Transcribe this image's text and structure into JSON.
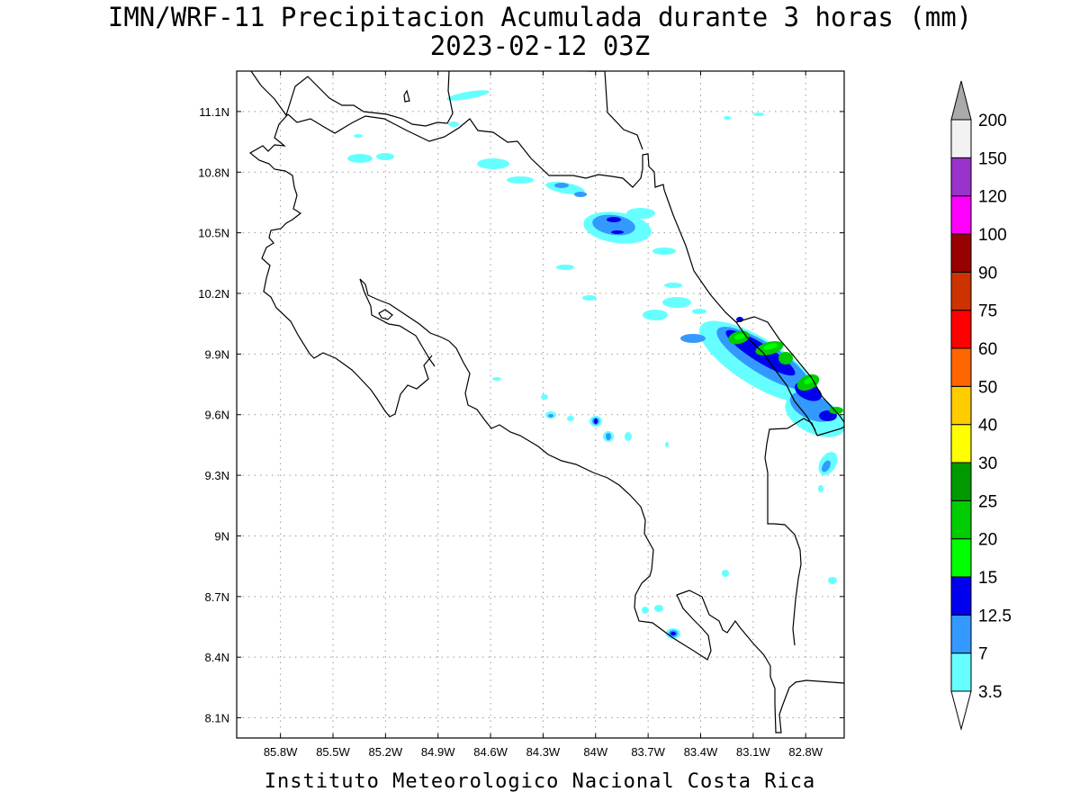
{
  "title": {
    "line1": "IMN/WRF-11 Precipitacion Acumulada durante 3 horas (mm)",
    "line2": "2023-02-12 03Z"
  },
  "footer": "Instituto Meteorologico Nacional Costa Rica",
  "map": {
    "lon_range": [
      -86.05,
      -82.58
    ],
    "lat_range": [
      8.0,
      11.3
    ],
    "lon_ticks": [
      {
        "value": -85.8,
        "label": "85.8W"
      },
      {
        "value": -85.5,
        "label": "85.5W"
      },
      {
        "value": -85.2,
        "label": "85.2W"
      },
      {
        "value": -84.9,
        "label": "84.9W"
      },
      {
        "value": -84.6,
        "label": "84.6W"
      },
      {
        "value": -84.3,
        "label": "84.3W"
      },
      {
        "value": -84.0,
        "label": "84W"
      },
      {
        "value": -83.7,
        "label": "83.7W"
      },
      {
        "value": -83.4,
        "label": "83.4W"
      },
      {
        "value": -83.1,
        "label": "83.1W"
      },
      {
        "value": -82.8,
        "label": "82.8W"
      }
    ],
    "lat_ticks": [
      {
        "value": 8.1,
        "label": "8.1N"
      },
      {
        "value": 8.4,
        "label": "8.4N"
      },
      {
        "value": 8.7,
        "label": "8.7N"
      },
      {
        "value": 9.0,
        "label": "9N"
      },
      {
        "value": 9.3,
        "label": "9.3N"
      },
      {
        "value": 9.6,
        "label": "9.6N"
      },
      {
        "value": 9.9,
        "label": "9.9N"
      },
      {
        "value": 10.2,
        "label": "10.2N"
      },
      {
        "value": 10.5,
        "label": "10.5N"
      },
      {
        "value": 10.8,
        "label": "10.8N"
      },
      {
        "value": 11.1,
        "label": "11.1N"
      }
    ],
    "grid": true
  },
  "colorbar": {
    "levels": [
      "3.5",
      "7",
      "12.5",
      "15",
      "20",
      "25",
      "30",
      "40",
      "50",
      "60",
      "75",
      "90",
      "100",
      "120",
      "150",
      "200"
    ],
    "colors": [
      "#66ffff",
      "#3399ff",
      "#0000ee",
      "#00ff00",
      "#00cc00",
      "#009900",
      "#ffff00",
      "#ffcc00",
      "#ff6600",
      "#ff0000",
      "#cc3300",
      "#990000",
      "#ff00ff",
      "#9933cc",
      "#f2f2f2"
    ],
    "under_color": "#ffffff",
    "over_color": "#aaaaaa"
  }
}
